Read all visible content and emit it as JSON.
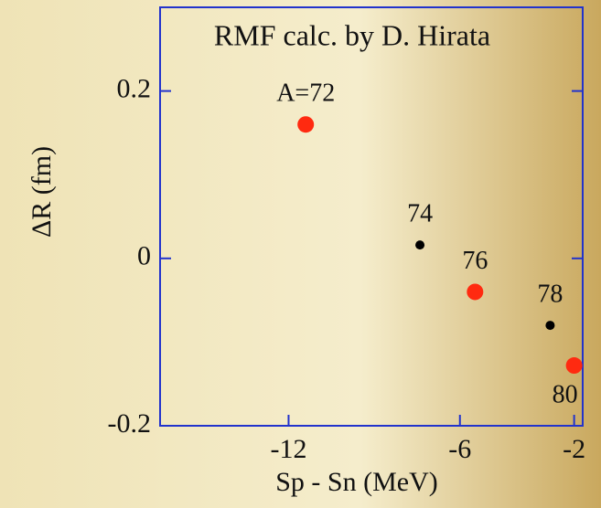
{
  "chart_data": {
    "type": "scatter",
    "title": "RMF calc. by D. Hirata",
    "x_label": "Sp - Sn (MeV)",
    "y_label": "ΔR (fm)",
    "x": [
      -11.4,
      -7.4,
      -5.47,
      -2.84,
      -2.0
    ],
    "values": [
      0.16,
      0.016,
      -0.04,
      -0.08,
      -0.128
    ],
    "point_labels": [
      "A=72",
      "74",
      "76",
      "78",
      "80"
    ],
    "colors": [
      "#ff2a10",
      "#000000",
      "#ff2a10",
      "#000000",
      "#ff2a10"
    ],
    "xlim": [
      -16.5,
      -1.7
    ],
    "xticks": [
      -12,
      -6,
      -2
    ],
    "ylim": [
      -0.2,
      0.3
    ],
    "yticks": [
      -0.2,
      0,
      0.2
    ],
    "axis_color": "#2233cc"
  }
}
